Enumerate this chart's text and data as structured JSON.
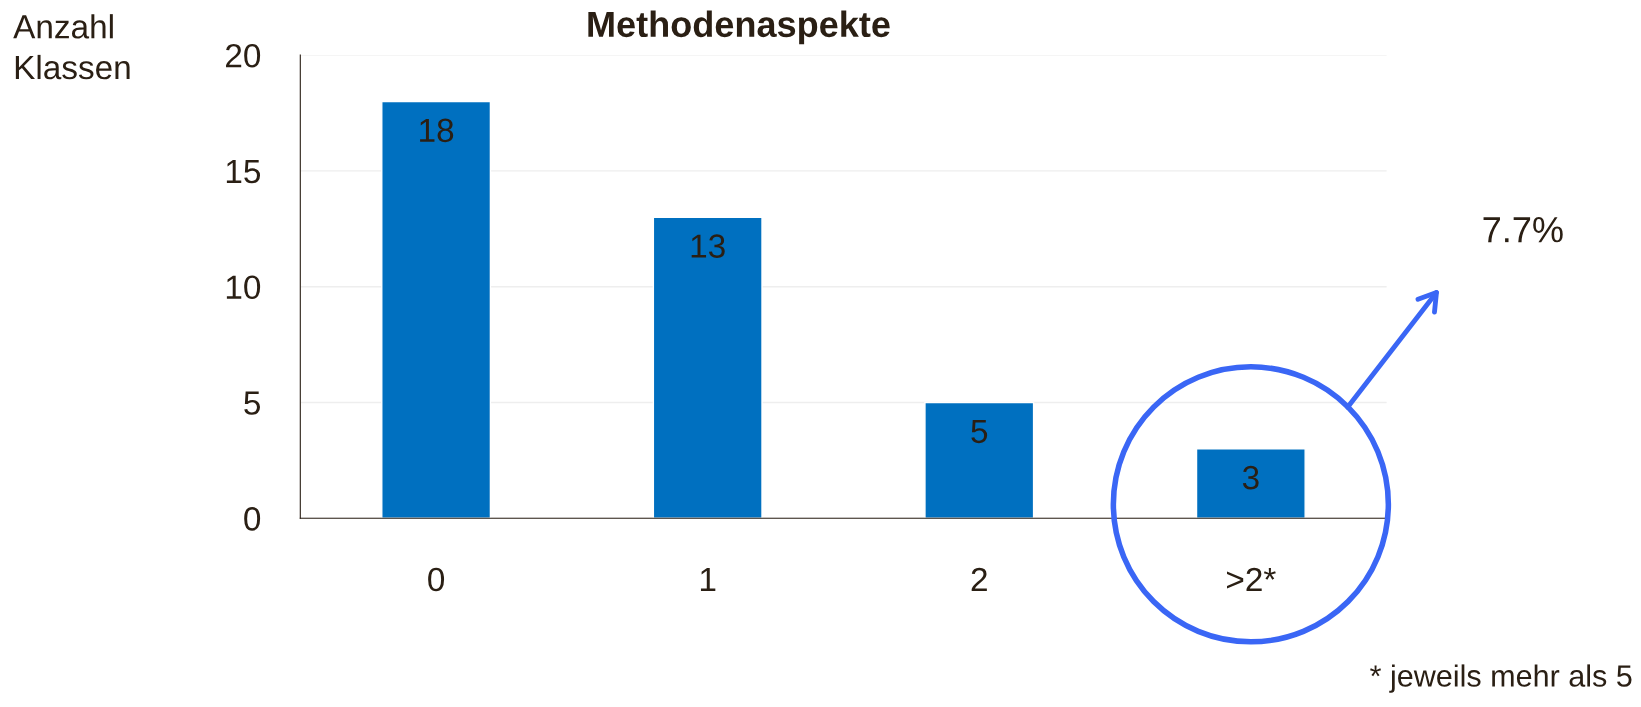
{
  "chart_data": {
    "type": "bar",
    "title": "Methodenaspekte",
    "ylabel": "Anzahl\nKlassen",
    "categories": [
      "0",
      "1",
      "2",
      ">2*"
    ],
    "values": [
      18,
      13,
      5,
      3
    ],
    "color": "#0070c0",
    "ylim": [
      0,
      20
    ],
    "yticks": [
      0,
      5,
      10,
      15,
      20
    ],
    "grid": "y",
    "data_labels": true,
    "annotations": [
      "7.7%",
      "* jeweils mehr als 5"
    ]
  }
}
